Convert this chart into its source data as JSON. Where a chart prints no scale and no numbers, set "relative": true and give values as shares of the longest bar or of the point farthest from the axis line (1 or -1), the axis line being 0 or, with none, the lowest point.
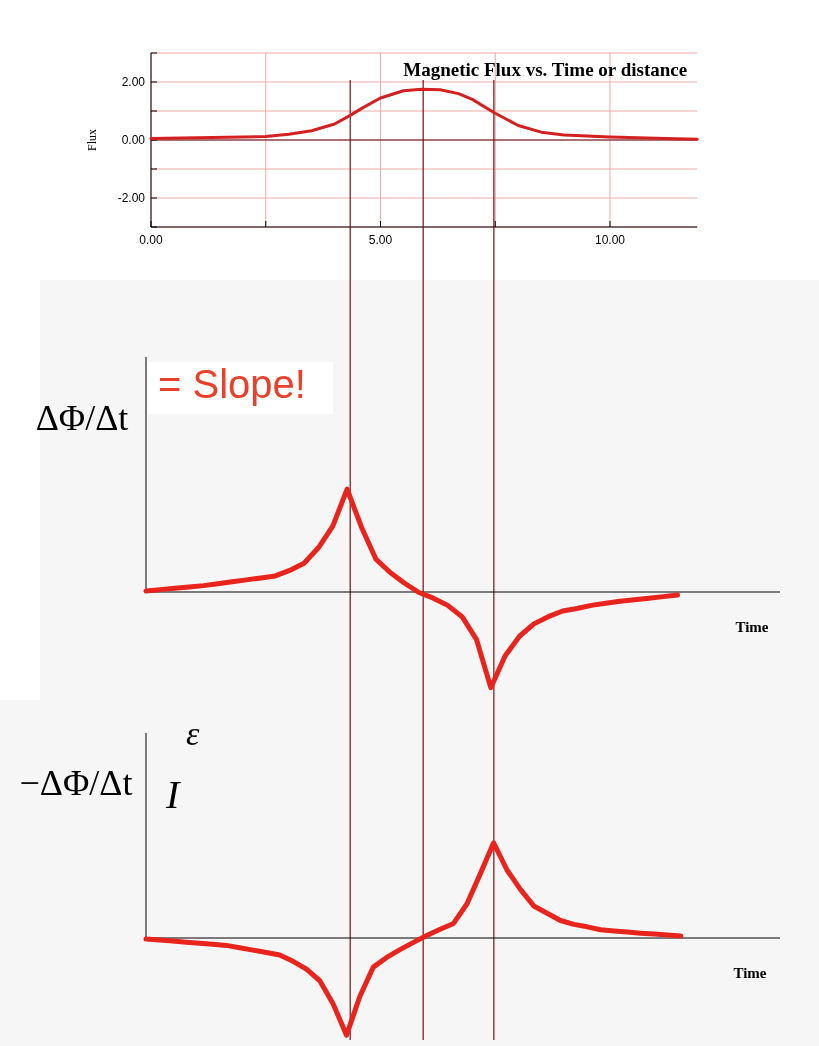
{
  "chart_data": [
    {
      "type": "line",
      "title": "Magnetic Flux vs. Time  or distance",
      "ylabel": "Flux",
      "xlim": [
        0,
        11.9
      ],
      "ylim": [
        -3,
        3
      ],
      "xticks": [
        {
          "value": 0,
          "label": "0.00"
        },
        {
          "value": 2.5,
          "label": null
        },
        {
          "value": 5,
          "label": "5.00"
        },
        {
          "value": 7.5,
          "label": null
        },
        {
          "value": 10,
          "label": "10.00"
        }
      ],
      "yticks": [
        {
          "value": -3,
          "label": null
        },
        {
          "value": -2,
          "label": "-2.00"
        },
        {
          "value": -1,
          "label": null
        },
        {
          "value": 0,
          "label": "0.00"
        },
        {
          "value": 1,
          "label": null
        },
        {
          "value": 2,
          "label": "2.00"
        },
        {
          "value": 3,
          "label": null
        }
      ],
      "grid": true,
      "x": [
        0,
        1,
        2,
        2.5,
        3,
        3.5,
        4,
        4.34,
        4.6,
        5,
        5.5,
        5.9,
        6.3,
        6.7,
        7,
        7.47,
        8,
        8.5,
        9,
        10,
        11,
        11.9
      ],
      "series": [
        {
          "color": "#d42020",
          "values": [
            0.05,
            0.08,
            0.1,
            0.12,
            0.2,
            0.32,
            0.55,
            0.85,
            1.1,
            1.45,
            1.7,
            1.75,
            1.73,
            1.6,
            1.4,
            0.95,
            0.5,
            0.27,
            0.17,
            0.1,
            0.06,
            0.03
          ]
        }
      ],
      "ref_lines": [
        {
          "axis": "x",
          "value": 4.34,
          "color": "#7a1010"
        },
        {
          "axis": "x",
          "value": 5.93,
          "color": "#7a1010"
        },
        {
          "axis": "x",
          "value": 7.47,
          "color": "#7a1010"
        }
      ]
    },
    {
      "type": "line",
      "relative": true,
      "ylabel": "ΔΦ/Δt",
      "xlabel": "Time",
      "annotations": [
        "= Slope!"
      ],
      "categories": [
        null,
        null,
        null,
        null,
        null,
        null,
        null,
        null,
        null,
        null,
        null,
        null,
        null,
        null,
        null,
        null,
        null,
        null,
        null,
        null,
        null,
        null,
        null,
        null,
        null,
        null,
        null,
        null,
        null,
        null,
        null,
        null,
        null,
        null,
        null,
        null,
        null,
        null
      ],
      "series": [
        {
          "color": "#e8241c",
          "values": [
            0.01,
            0.023,
            0.036,
            0.049,
            0.062,
            0.08,
            0.1,
            0.118,
            0.137,
            0.156,
            0.21,
            0.28,
            0.43,
            0.64,
            1,
            0.63,
            0.32,
            0.19,
            0.085,
            -0.005,
            -0.06,
            -0.13,
            -0.24,
            -0.46,
            -0.93,
            -0.62,
            -0.43,
            -0.31,
            -0.24,
            -0.185,
            -0.16,
            -0.13,
            -0.11,
            -0.09,
            -0.075,
            -0.06,
            -0.045,
            -0.03
          ]
        }
      ]
    },
    {
      "type": "line",
      "relative": true,
      "ylabel": "−ΔΦ/Δt",
      "xlabel": "Time",
      "annotations": [
        "ε",
        "I"
      ],
      "categories": [
        null,
        null,
        null,
        null,
        null,
        null,
        null,
        null,
        null,
        null,
        null,
        null,
        null,
        null,
        null,
        null,
        null,
        null,
        null,
        null,
        null,
        null,
        null,
        null,
        null,
        null,
        null,
        null,
        null,
        null,
        null,
        null,
        null,
        null,
        null,
        null,
        null,
        null,
        null,
        null,
        null
      ],
      "series": [
        {
          "color": "#e8241c",
          "values": [
            -0.01,
            -0.021,
            -0.032,
            -0.043,
            -0.054,
            -0.065,
            -0.076,
            -0.1,
            -0.125,
            -0.15,
            -0.175,
            -0.24,
            -0.32,
            -0.44,
            -0.68,
            -1,
            -0.6,
            -0.3,
            -0.2,
            -0.12,
            -0.045,
            0.025,
            0.09,
            0.15,
            0.35,
            0.66,
            0.98,
            0.7,
            0.5,
            0.33,
            0.255,
            0.18,
            0.14,
            0.115,
            0.085,
            0.072,
            0.061,
            0.05,
            0.04,
            0.03,
            0.02
          ]
        }
      ]
    }
  ]
}
